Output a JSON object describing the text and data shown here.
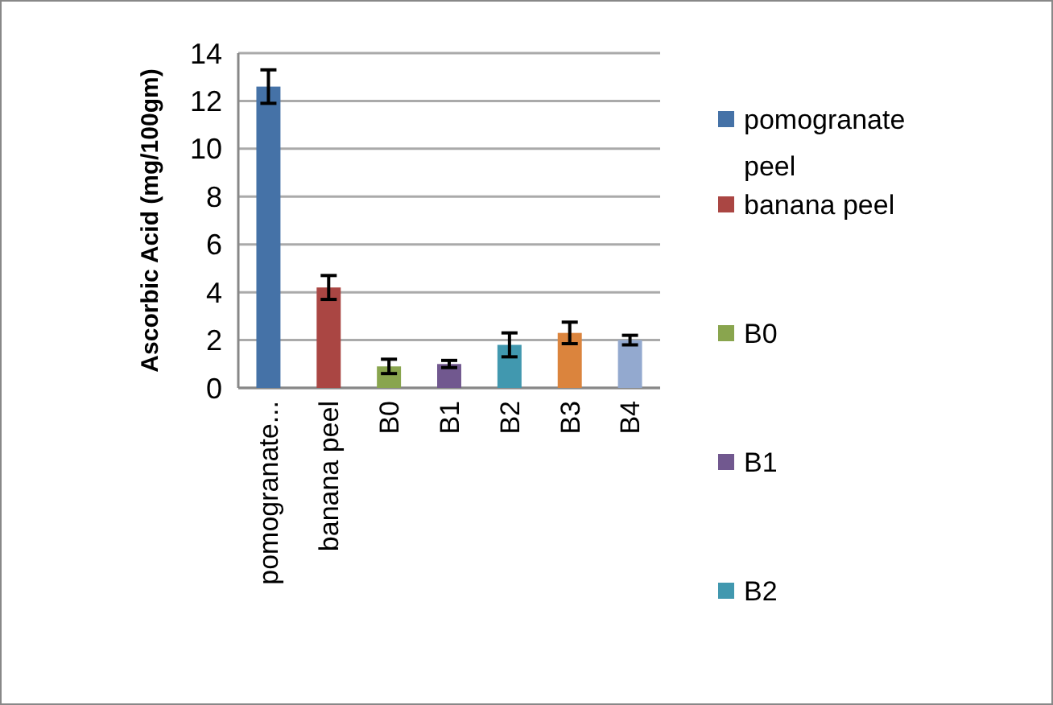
{
  "chart_data": {
    "type": "bar",
    "ylabel": "Ascorbic Acid (mg/100gm)",
    "categories": [
      "pomogranate...",
      "banana peel",
      "B0",
      "B1",
      "B2",
      "B3",
      "B4"
    ],
    "series": [
      {
        "name": "pomogranate peel",
        "color": "#4572a7",
        "values": [
          12.6,
          null,
          null,
          null,
          null,
          null,
          null
        ],
        "errors": [
          0.7,
          null,
          null,
          null,
          null,
          null,
          null
        ]
      },
      {
        "name": "banana peel",
        "color": "#aa4643",
        "values": [
          null,
          4.2,
          null,
          null,
          null,
          null,
          null
        ],
        "errors": [
          null,
          0.5,
          null,
          null,
          null,
          null,
          null
        ]
      },
      {
        "name": "B0",
        "color": "#89a54e",
        "values": [
          null,
          null,
          0.9,
          null,
          null,
          null,
          null
        ],
        "errors": [
          null,
          null,
          0.3,
          null,
          null,
          null,
          null
        ]
      },
      {
        "name": "B1",
        "color": "#71588f",
        "values": [
          null,
          null,
          null,
          1.0,
          null,
          null,
          null
        ],
        "errors": [
          null,
          null,
          null,
          0.15,
          null,
          null,
          null
        ]
      },
      {
        "name": "B2",
        "color": "#4198af",
        "values": [
          null,
          null,
          null,
          null,
          1.8,
          null,
          null
        ],
        "errors": [
          null,
          null,
          null,
          null,
          0.5,
          null,
          null
        ]
      },
      {
        "color": "#db843d",
        "values": [
          null,
          null,
          null,
          null,
          null,
          2.3,
          null
        ],
        "errors": [
          null,
          null,
          null,
          null,
          null,
          0.45,
          null
        ]
      },
      {
        "color": "#93a9cf",
        "values": [
          null,
          null,
          null,
          null,
          null,
          null,
          2.0
        ],
        "errors": [
          null,
          null,
          null,
          null,
          null,
          null,
          0.2
        ]
      }
    ],
    "ylim": [
      0,
      14
    ],
    "yticks": [
      0,
      2,
      4,
      6,
      8,
      10,
      12,
      14
    ],
    "grid": "y",
    "legend": "right"
  }
}
